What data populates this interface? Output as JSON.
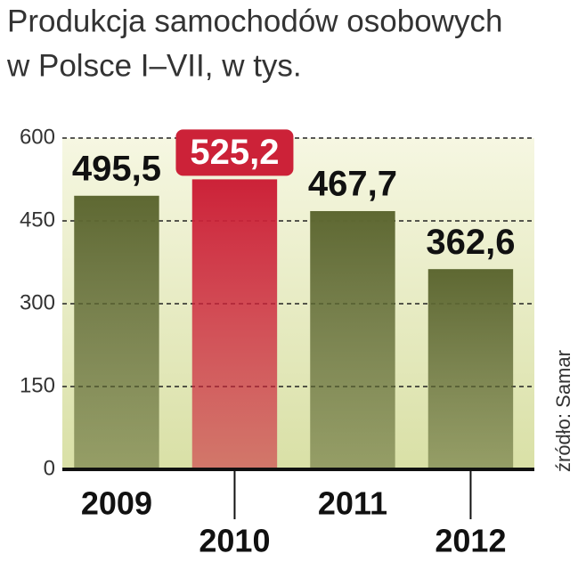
{
  "chart_data": {
    "type": "bar",
    "title": [
      "Produkcja samochodów osobowych",
      "w Polsce I–VII, w tys."
    ],
    "categories": [
      "2009",
      "2010",
      "2011",
      "2012"
    ],
    "values": [
      495.5,
      525.2,
      467.7,
      362.6
    ],
    "value_labels": [
      "495,5",
      "525,2",
      "467,7",
      "362,6"
    ],
    "colors": [
      "#5e6832",
      "#cc2238",
      "#5e6832",
      "#5e6832"
    ],
    "highlight": 1,
    "ylim": [
      0,
      600
    ],
    "yticks": [
      0,
      150,
      300,
      450,
      600
    ],
    "grid": true,
    "source": "źródło: Samar"
  }
}
